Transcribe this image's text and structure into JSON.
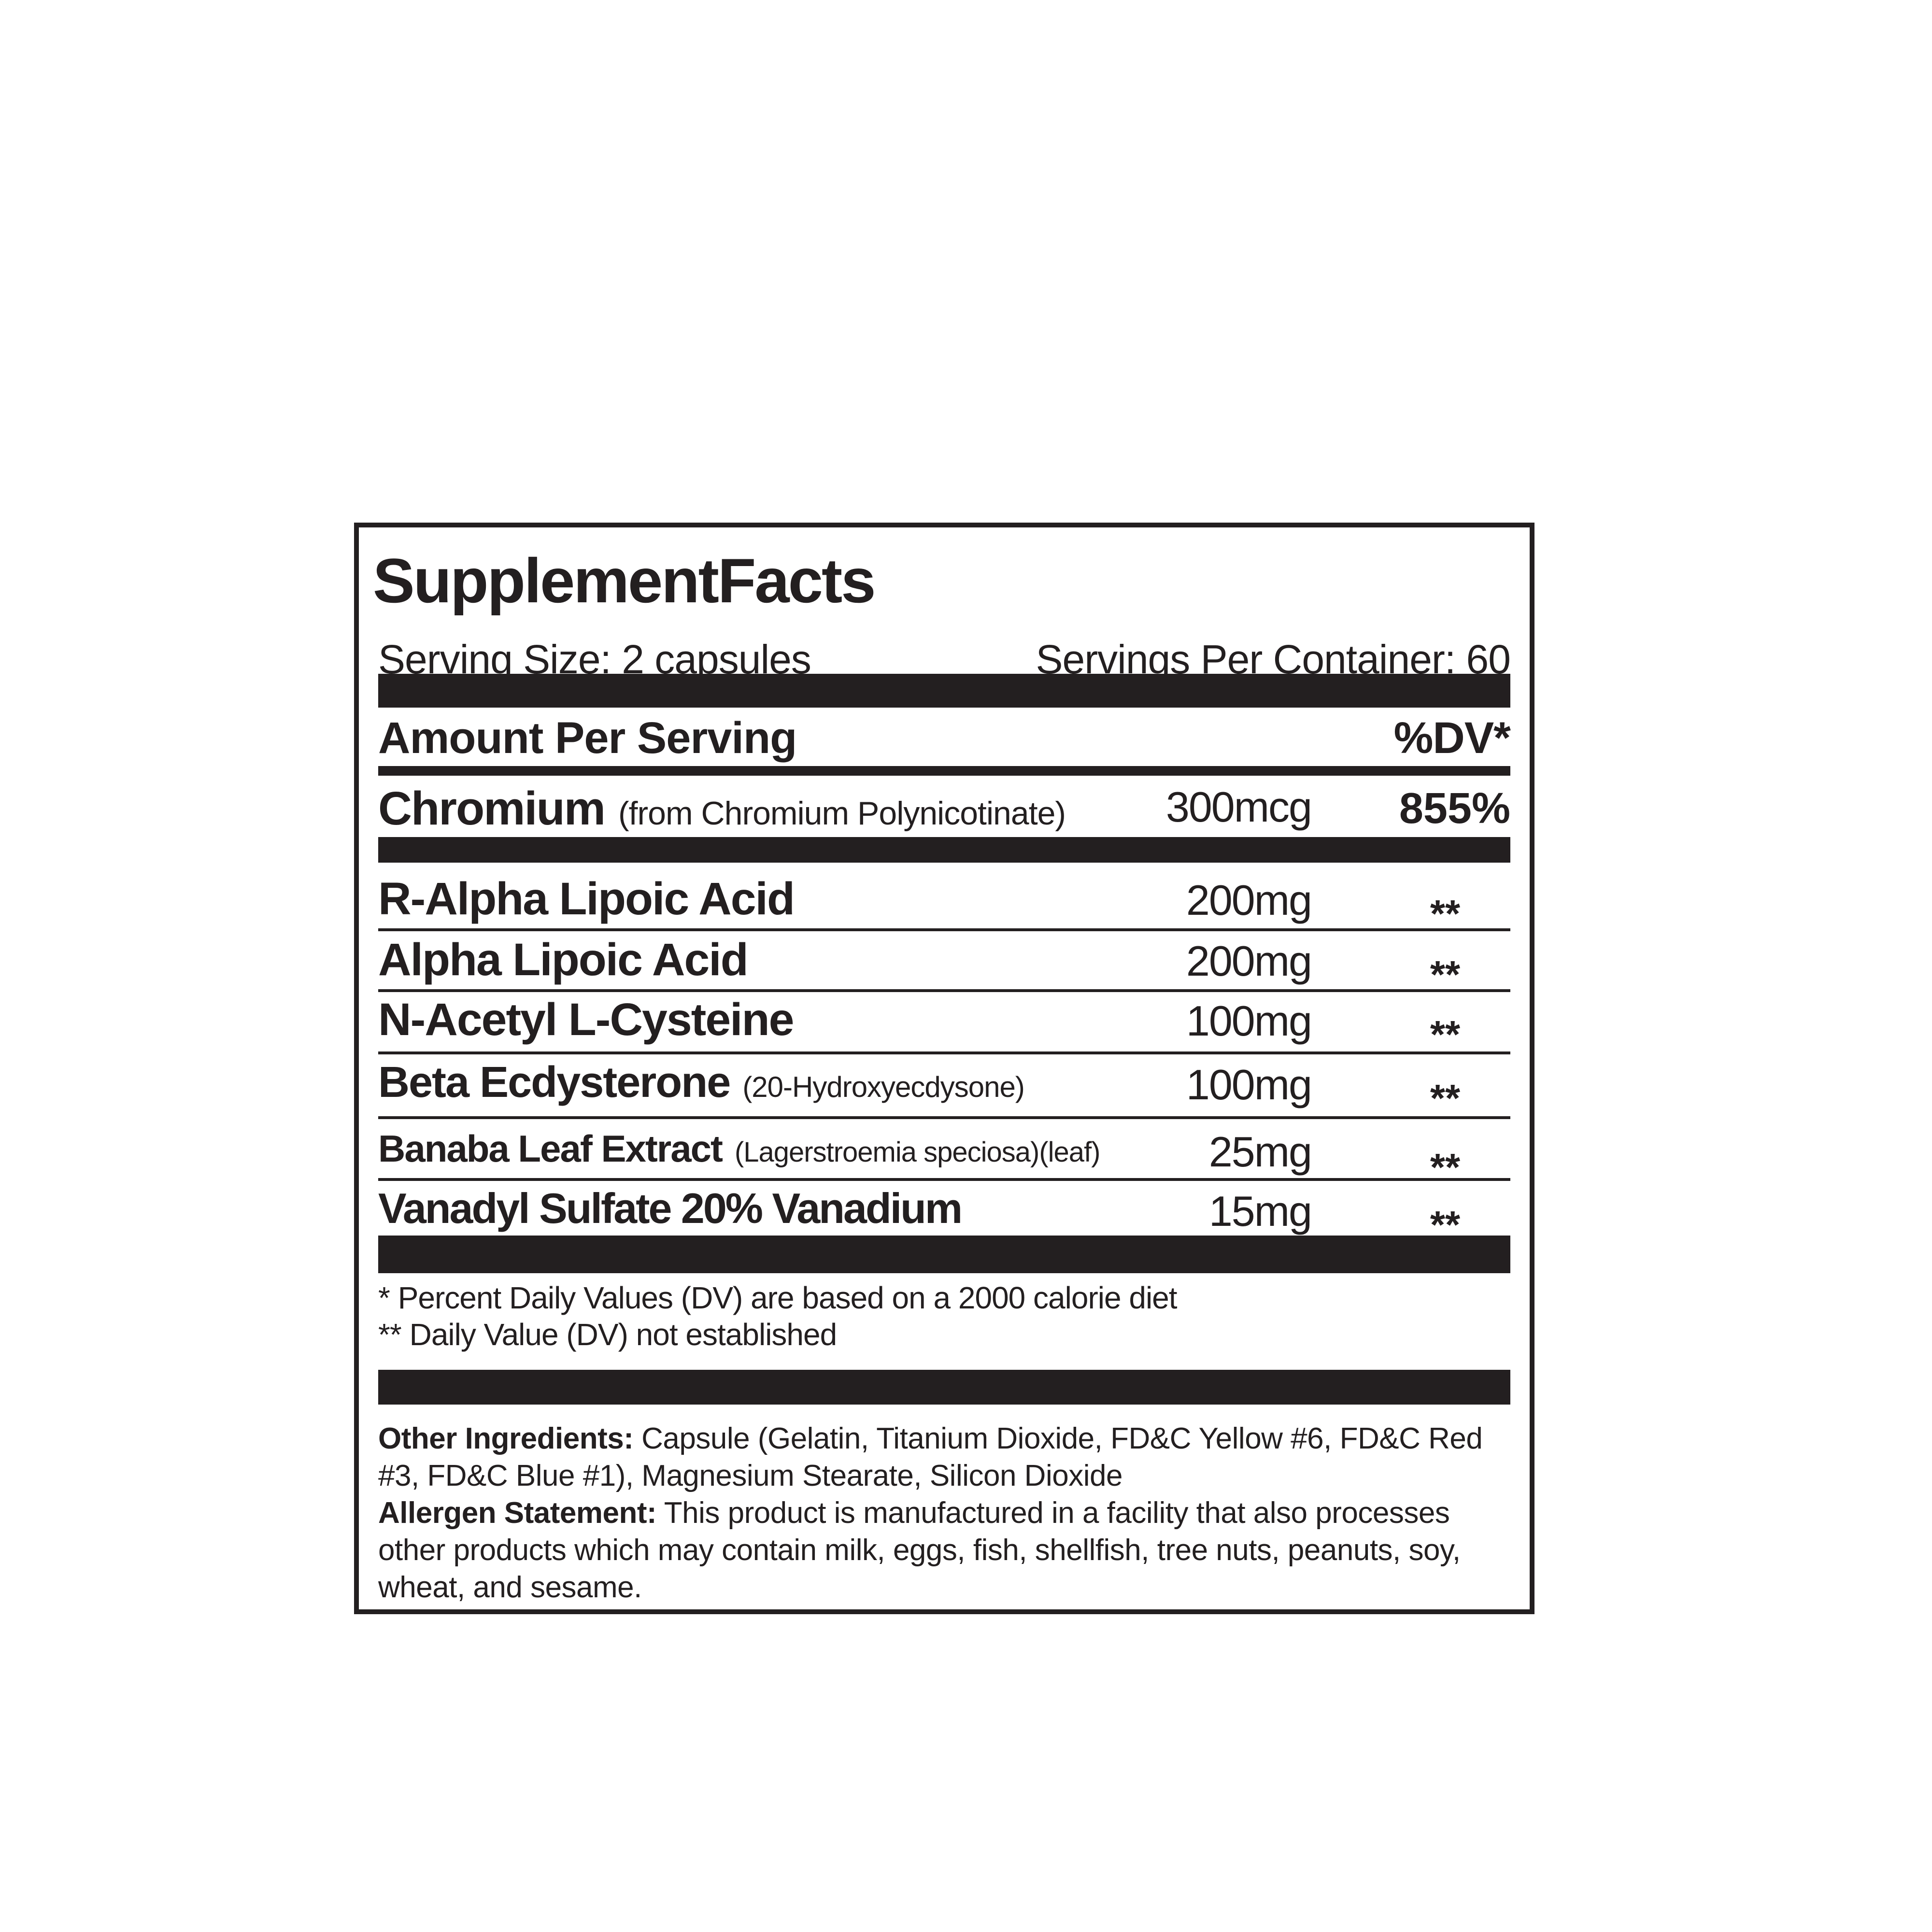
{
  "label": {
    "title": "SupplementFacts",
    "serving_size": "Serving Size: 2 capsules",
    "servings_per_container": "Servings Per Container: 60",
    "columns": {
      "amount_header": "Amount Per Serving",
      "dv_header": "%DV*"
    },
    "chromium": {
      "name": "Chromium",
      "detail": "(from Chromium Polynicotinate)",
      "amount": "300mcg",
      "dv": "855%"
    },
    "rows": [
      {
        "name": "R-Alpha Lipoic Acid",
        "detail": "",
        "amount": "200mg",
        "dv": "**"
      },
      {
        "name": "Alpha Lipoic Acid",
        "detail": "",
        "amount": "200mg",
        "dv": "**"
      },
      {
        "name": "N-Acetyl L-Cysteine",
        "detail": "",
        "amount": "100mg",
        "dv": "**"
      },
      {
        "name": "Beta Ecdysterone",
        "detail": "(20-Hydroxyecdysone)",
        "amount": "100mg",
        "dv": "**"
      },
      {
        "name": "Banaba Leaf Extract",
        "detail": "(Lagerstroemia speciosa)(leaf)",
        "amount": "25mg",
        "dv": "**"
      },
      {
        "name": "Vanadyl Sulfate 20% Vanadium",
        "detail": "",
        "amount": "15mg",
        "dv": "**"
      }
    ],
    "footnotes": [
      "* Percent Daily Values (DV) are based on a 2000 calorie diet",
      "** Daily Value (DV) not established"
    ],
    "other_ingredients": {
      "lead": "Other Ingredients:",
      "text": " Capsule (Gelatin, Titanium Dioxide, FD&C Yellow #6, FD&C Red #3, FD&C Blue #1), Magnesium Stearate, Silicon Dioxide"
    },
    "allergen": {
      "lead": "Allergen Statement:",
      "text": " This product is manufactured in a facility that also processes other products which may contain milk, eggs, fish, shellfish, tree nuts, peanuts, soy, wheat, and sesame."
    }
  },
  "colors": {
    "ink": "#231f20",
    "background": "#ffffff"
  }
}
